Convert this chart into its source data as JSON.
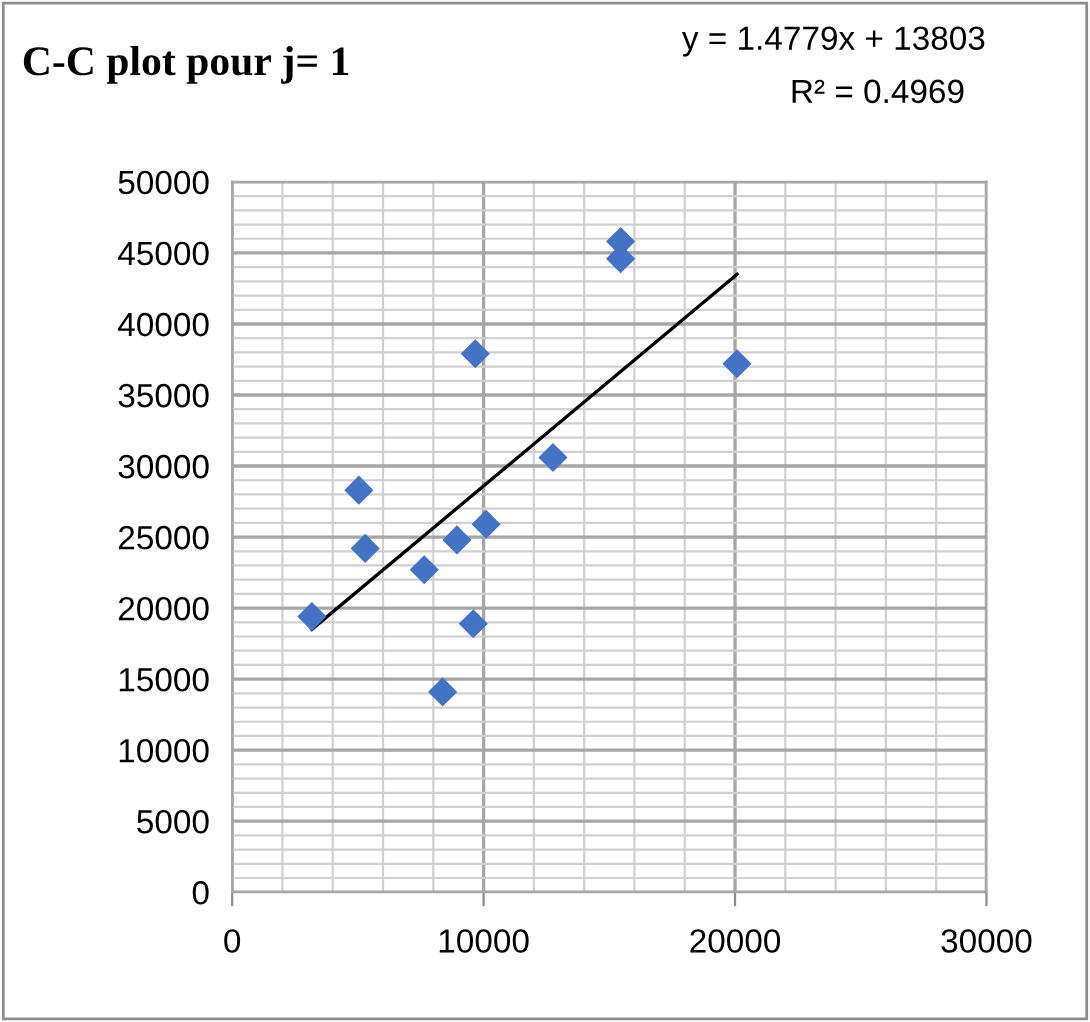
{
  "chart_data": {
    "type": "scatter",
    "title": "C-C plot pour j= 1",
    "annotations": [
      "y = 1.4779x + 13803",
      "R² = 0.4969"
    ],
    "series": [
      {
        "color": "#4472c4",
        "marker": "diamond",
        "x": [
          3170,
          5040,
          5290,
          7640,
          8940,
          10100,
          9590,
          8370,
          9670,
          12760,
          15450,
          15450,
          20080
        ],
        "values": [
          19400,
          28300,
          24200,
          22700,
          24800,
          25900,
          18900,
          14100,
          37900,
          30600,
          45800,
          44600,
          37200
        ]
      },
      {
        "type": "line",
        "color": "#000000",
        "x": [
          3170,
          20080
        ],
        "values": [
          18500,
          43500
        ]
      }
    ],
    "xlim": [
      0,
      30000
    ],
    "xticks": [
      0,
      10000,
      20000,
      30000
    ],
    "ylim": [
      0,
      50000
    ],
    "yticks": [
      0,
      5000,
      10000,
      15000,
      20000,
      25000,
      30000,
      35000,
      40000,
      45000,
      50000
    ],
    "grid": true
  }
}
